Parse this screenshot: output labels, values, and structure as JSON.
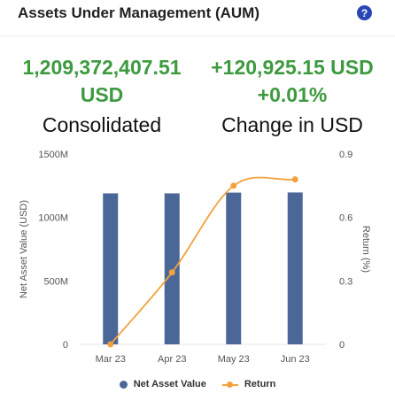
{
  "header": {
    "title": "Assets Under Management (AUM)",
    "help_icon": "?"
  },
  "kpis": {
    "consolidated": {
      "value_line1": "1,209,372,407.51",
      "value_line2": "USD",
      "label": "Consolidated"
    },
    "change": {
      "value_line1": "+120,925.15 USD",
      "value_line2": "+0.01%",
      "label": "Change in USD"
    }
  },
  "colors": {
    "bar": "#4a6797",
    "line": "#f2a23c",
    "positive": "#3d9a3f"
  },
  "chart_data": {
    "type": "bar",
    "categories": [
      "Mar 23",
      "Apr 23",
      "May 23",
      "Jun 23"
    ],
    "series": [
      {
        "name": "Net Asset Value",
        "type": "bar",
        "axis": "left",
        "values": [
          1190,
          1190,
          1196,
          1197
        ]
      },
      {
        "name": "Return",
        "type": "line",
        "axis": "right",
        "values": [
          0.0,
          0.34,
          0.75,
          0.78
        ]
      }
    ],
    "ylabel": "Net Asset Value (USD)",
    "ylabel_right": "Return (%)",
    "ylim": [
      0,
      1500
    ],
    "ylim_right": [
      0,
      0.9
    ],
    "yticks": [
      {
        "value": 0,
        "label": "0"
      },
      {
        "value": 500,
        "label": "500M"
      },
      {
        "value": 1000,
        "label": "1000M"
      },
      {
        "value": 1500,
        "label": "1500M"
      }
    ],
    "yticks_right": [
      {
        "value": 0,
        "label": "0"
      },
      {
        "value": 0.3,
        "label": "0.3"
      },
      {
        "value": 0.6,
        "label": "0.6"
      },
      {
        "value": 0.9,
        "label": "0.9"
      }
    ],
    "legend": [
      "Net Asset Value",
      "Return"
    ],
    "legend_position": "bottom",
    "grid": false
  }
}
